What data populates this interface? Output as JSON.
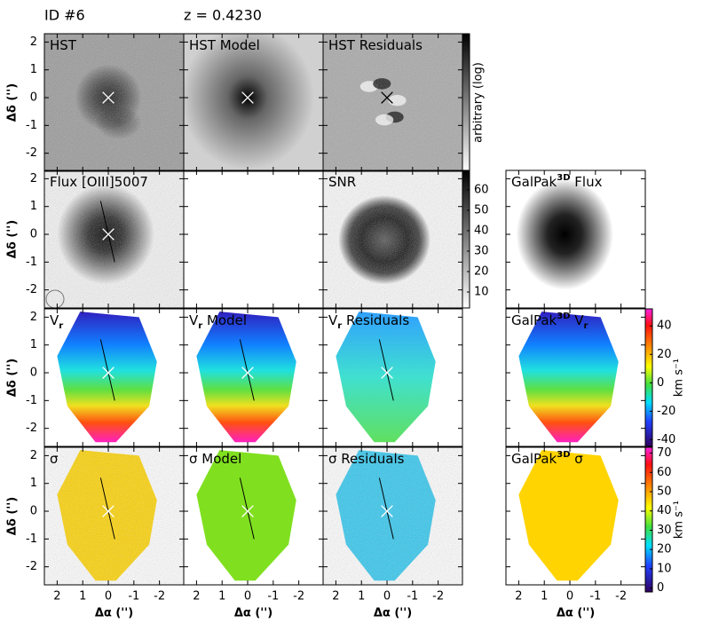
{
  "header": {
    "id": "ID #6",
    "redshift": "z = 0.4230"
  },
  "axes": {
    "xlabel": "Δα ('')",
    "ylabel": "Δδ ('')",
    "xlim": [
      2.5,
      -2.95
    ],
    "ylim": [
      -2.65,
      2.3
    ],
    "xticks": [
      2,
      1,
      0,
      -1,
      -2
    ],
    "yticks": [
      2,
      1,
      0,
      -1,
      -2
    ]
  },
  "rows": [
    [
      {
        "title": [
          {
            "text": "HST"
          }
        ]
      },
      {
        "title": [
          {
            "text": "HST  Model"
          }
        ]
      },
      {
        "title": [
          {
            "text": "HST  Residuals"
          }
        ],
        "colorbar": {
          "label": "arbitrary (log)",
          "colormap": "gray"
        }
      },
      null
    ],
    [
      {
        "title": [
          {
            "text": "Flux  [OIII]5007"
          }
        ]
      },
      null,
      {
        "title": [
          {
            "text": "SNR"
          }
        ],
        "colorbar": {
          "colormap": "gray",
          "ylim": [
            2.2,
            69.5
          ],
          "yticks": [
            10,
            20,
            30,
            40,
            50,
            60
          ]
        }
      },
      {
        "title": [
          {
            "text": "GalPak"
          },
          {
            "text": "3D",
            "style": "sup"
          },
          {
            "text": " Flux"
          }
        ]
      }
    ],
    [
      {
        "title": [
          {
            "text": "V"
          },
          {
            "text": "r",
            "style": "sub"
          }
        ]
      },
      {
        "title": [
          {
            "text": "V"
          },
          {
            "text": "r",
            "style": "sub"
          },
          {
            "text": " Model"
          }
        ]
      },
      {
        "title": [
          {
            "text": "V"
          },
          {
            "text": "r",
            "style": "sub"
          },
          {
            "text": " Residuals"
          }
        ]
      },
      {
        "title": [
          {
            "text": "GalPak"
          },
          {
            "text": "3D",
            "style": "sup"
          },
          {
            "text": "  V"
          },
          {
            "text": "r",
            "style": "sub"
          }
        ],
        "colorbar": {
          "label": "km s⁻¹",
          "colormap": "rainbow",
          "ylim": [
            -44.7,
            52
          ],
          "yticks": [
            -40,
            -20,
            0,
            20,
            40
          ]
        }
      }
    ],
    [
      {
        "title": [
          {
            "text": "σ"
          }
        ]
      },
      {
        "title": [
          {
            "text": "σ  Model"
          }
        ]
      },
      {
        "title": [
          {
            "text": "σ  Residuals"
          }
        ]
      },
      {
        "title": [
          {
            "text": "GalPak"
          },
          {
            "text": "3D",
            "style": "sup"
          },
          {
            "text": "  σ"
          }
        ],
        "colorbar": {
          "label": "km s⁻¹",
          "colormap": "rainbow",
          "ylim": [
            -2,
            73
          ],
          "yticks": [
            0,
            10,
            20,
            30,
            40,
            50,
            60,
            70
          ]
        }
      }
    ]
  ]
}
